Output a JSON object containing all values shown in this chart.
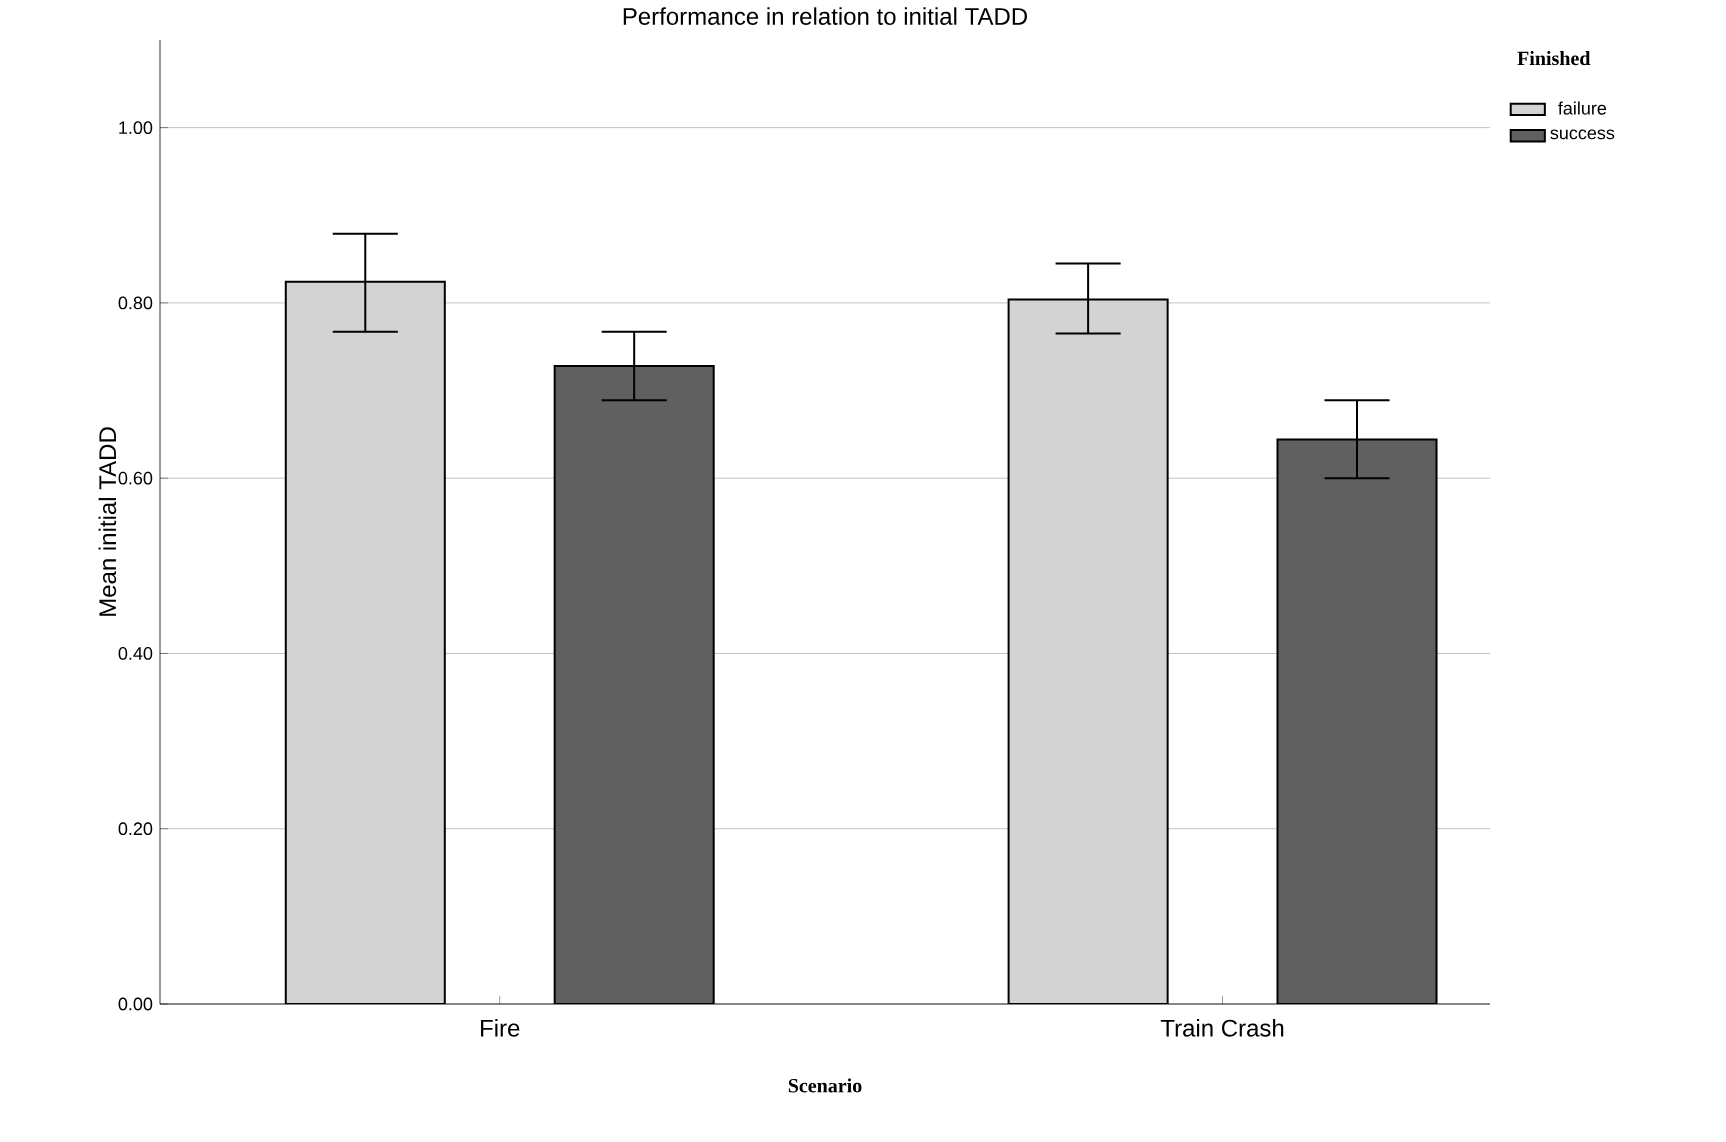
{
  "chart_data": {
    "type": "bar",
    "title": "Performance in relation to initial TADD",
    "xlabel": "Scenario",
    "ylabel": "Mean initial TADD",
    "legend_title": "Finished",
    "categories": [
      "Fire",
      "Train Crash"
    ],
    "series": [
      {
        "name": "failure",
        "color": "#d3d3d3",
        "values": [
          0.824,
          0.804
        ],
        "errors": [
          [
            0.767,
            0.879
          ],
          [
            0.765,
            0.845
          ]
        ]
      },
      {
        "name": "success",
        "color": "#606060",
        "values": [
          0.728,
          0.644
        ],
        "errors": [
          [
            0.689,
            0.767
          ],
          [
            0.6,
            0.689
          ]
        ]
      }
    ],
    "ylim": [
      0,
      1.1
    ],
    "yticks": [
      {
        "value": 0,
        "label": "0.00"
      },
      {
        "value": 0.2,
        "label": "0.20"
      },
      {
        "value": 0.4,
        "label": "0.40"
      },
      {
        "value": 0.6,
        "label": "0.60"
      },
      {
        "value": 0.8,
        "label": "0.80"
      },
      {
        "value": 1.0,
        "label": "1.00"
      }
    ],
    "grid": "y",
    "legend": "top right"
  }
}
